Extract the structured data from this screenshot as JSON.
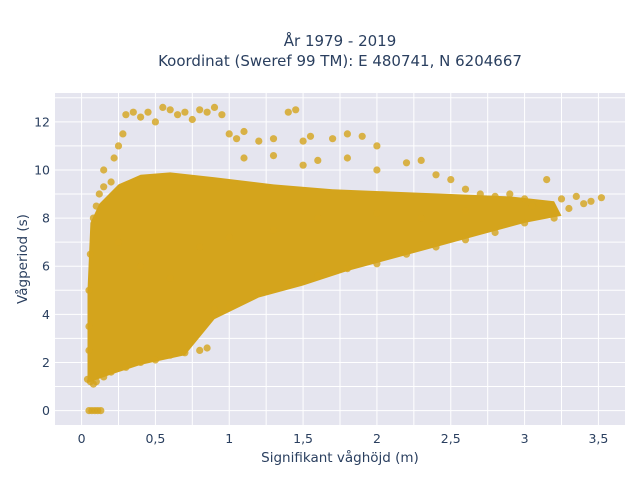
{
  "chart_data": {
    "type": "scatter",
    "title_line1": "År 1979 - 2019",
    "title_line2": "Koordinat (Sweref 99 TM): E 480741, N 6204667",
    "xlabel": "Signifikant våghöjd (m)",
    "ylabel": "Vågperiod (s)",
    "xlim": [
      -0.18,
      3.68
    ],
    "ylim": [
      -0.6,
      13.2
    ],
    "x_ticks": [
      0,
      0.5,
      1,
      1.5,
      2,
      2.5,
      3,
      3.5
    ],
    "x_tick_labels": [
      "0",
      "0,5",
      "1",
      "1,5",
      "2",
      "2,5",
      "3",
      "3,5"
    ],
    "y_ticks": [
      0,
      2,
      4,
      6,
      8,
      10,
      12
    ],
    "y_tick_labels": [
      "0",
      "2",
      "4",
      "6",
      "8",
      "10",
      "12"
    ],
    "grid": true,
    "background_color": "#e5e5ef",
    "series": [
      {
        "color": "#d4a41c",
        "points": [
          [
            0.05,
            0
          ],
          [
            0.07,
            0
          ],
          [
            0.09,
            0
          ],
          [
            0.11,
            0
          ],
          [
            0.13,
            0
          ],
          [
            0.04,
            1.3
          ],
          [
            0.06,
            1.2
          ],
          [
            0.08,
            1.1
          ],
          [
            0.1,
            1.2
          ],
          [
            0.15,
            1.4
          ],
          [
            0.2,
            1.6
          ],
          [
            0.3,
            1.8
          ],
          [
            0.4,
            2.0
          ],
          [
            0.5,
            2.1
          ],
          [
            0.6,
            2.3
          ],
          [
            0.7,
            2.4
          ],
          [
            0.8,
            2.5
          ],
          [
            0.85,
            2.6
          ],
          [
            0.05,
            2.5
          ],
          [
            0.05,
            3.5
          ],
          [
            0.05,
            5.0
          ],
          [
            0.06,
            6.5
          ],
          [
            0.08,
            8.0
          ],
          [
            0.1,
            8.5
          ],
          [
            0.12,
            9.0
          ],
          [
            0.15,
            9.3
          ],
          [
            0.2,
            9.5
          ],
          [
            0.15,
            10.0
          ],
          [
            0.22,
            10.5
          ],
          [
            0.25,
            11.0
          ],
          [
            0.28,
            11.5
          ],
          [
            0.3,
            12.3
          ],
          [
            0.35,
            12.4
          ],
          [
            0.4,
            12.2
          ],
          [
            0.45,
            12.4
          ],
          [
            0.5,
            12.0
          ],
          [
            0.55,
            12.6
          ],
          [
            0.6,
            12.5
          ],
          [
            0.65,
            12.3
          ],
          [
            0.7,
            12.4
          ],
          [
            0.75,
            12.1
          ],
          [
            0.8,
            12.5
          ],
          [
            0.85,
            12.4
          ],
          [
            0.9,
            12.6
          ],
          [
            0.95,
            12.3
          ],
          [
            1.0,
            11.5
          ],
          [
            1.05,
            11.3
          ],
          [
            1.1,
            11.6
          ],
          [
            1.2,
            11.2
          ],
          [
            1.3,
            11.3
          ],
          [
            1.4,
            12.4
          ],
          [
            1.45,
            12.5
          ],
          [
            1.5,
            11.2
          ],
          [
            1.55,
            11.4
          ],
          [
            1.7,
            11.3
          ],
          [
            1.8,
            11.5
          ],
          [
            1.9,
            11.4
          ],
          [
            2.0,
            11.0
          ],
          [
            1.1,
            10.5
          ],
          [
            1.3,
            10.6
          ],
          [
            1.5,
            10.2
          ],
          [
            1.6,
            10.4
          ],
          [
            1.8,
            10.5
          ],
          [
            2.0,
            10.0
          ],
          [
            2.2,
            10.3
          ],
          [
            2.3,
            10.4
          ],
          [
            2.4,
            9.8
          ],
          [
            2.5,
            9.6
          ],
          [
            2.6,
            9.2
          ],
          [
            2.7,
            9.0
          ],
          [
            2.8,
            8.9
          ],
          [
            2.9,
            9.0
          ],
          [
            3.0,
            8.8
          ],
          [
            3.05,
            8.5
          ],
          [
            3.1,
            8.6
          ],
          [
            3.15,
            9.6
          ],
          [
            3.2,
            8.3
          ],
          [
            3.25,
            8.8
          ],
          [
            3.3,
            8.4
          ],
          [
            3.35,
            8.9
          ],
          [
            3.4,
            8.6
          ],
          [
            3.45,
            8.7
          ],
          [
            3.52,
            8.85
          ],
          [
            0.9,
            4.2
          ],
          [
            1.0,
            4.3
          ],
          [
            1.2,
            4.9
          ],
          [
            1.4,
            5.3
          ],
          [
            1.6,
            5.6
          ],
          [
            1.8,
            5.9
          ],
          [
            2.0,
            6.1
          ],
          [
            2.2,
            6.5
          ],
          [
            2.4,
            6.8
          ],
          [
            2.6,
            7.1
          ],
          [
            2.8,
            7.4
          ],
          [
            3.0,
            7.8
          ],
          [
            3.2,
            8.0
          ],
          [
            0.25,
            7.0
          ],
          [
            0.4,
            6.0
          ],
          [
            0.6,
            5.5
          ],
          [
            0.8,
            6.8
          ],
          [
            1.0,
            7.2
          ],
          [
            1.3,
            7.5
          ],
          [
            1.6,
            8.0
          ],
          [
            2.0,
            8.2
          ],
          [
            2.3,
            8.0
          ],
          [
            2.6,
            8.3
          ]
        ]
      }
    ]
  }
}
